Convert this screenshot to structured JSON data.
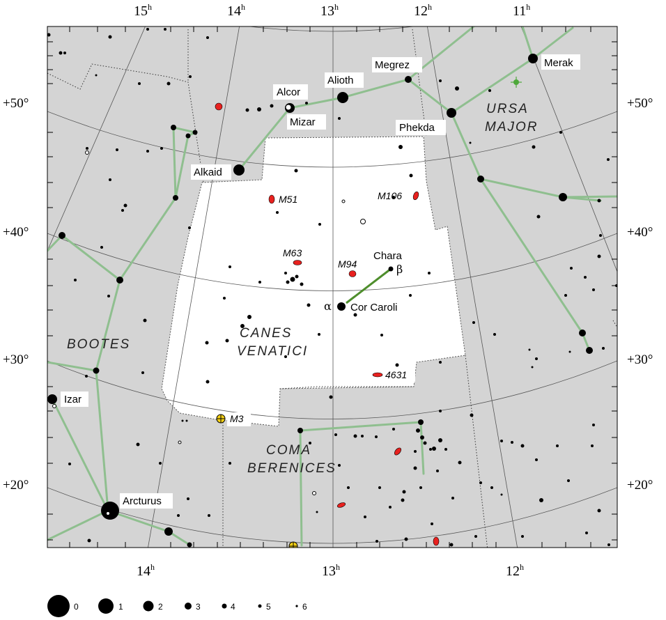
{
  "ra_labels_top": [
    {
      "h": "15",
      "sup": "h"
    },
    {
      "h": "14",
      "sup": "h"
    },
    {
      "h": "13",
      "sup": "h"
    },
    {
      "h": "12",
      "sup": "h"
    },
    {
      "h": "11",
      "sup": "h"
    }
  ],
  "ra_labels_bottom": [
    {
      "h": "14",
      "sup": "h"
    },
    {
      "h": "13",
      "sup": "h"
    },
    {
      "h": "12",
      "sup": "h"
    }
  ],
  "dec_labels": [
    "+50°",
    "+40°",
    "+30°",
    "+20°"
  ],
  "constellations": {
    "canes_venatici": [
      "CANES",
      "VENATICI"
    ],
    "ursa_major": [
      "URSA",
      "MAJOR"
    ],
    "bootes": [
      "BOOTES"
    ],
    "coma_berenices": [
      "COMA",
      "BERENICES"
    ]
  },
  "star_names": {
    "merak": "Merak",
    "megrez": "Megrez",
    "alioth": "Alioth",
    "alcor": "Alcor",
    "mizar": "Mizar",
    "phekda": "Phekda",
    "alkaid": "Alkaid",
    "chara": "Chara",
    "cor_caroli": "Cor Caroli",
    "izar": "Izar",
    "arcturus": "Arcturus"
  },
  "greek": {
    "alpha": "α",
    "beta": "β"
  },
  "objects": {
    "m51": "M51",
    "m106": "M106",
    "m63": "M63",
    "m94": "M94",
    "ngc4631": "4631",
    "m3": "M3"
  },
  "legend_magnitudes": [
    "0",
    "1",
    "2",
    "3",
    "4",
    "5",
    "6"
  ],
  "colors": {
    "background_grey": "#d4d4d4",
    "constellation_white": "#ffffff",
    "stick_green": "#8fbf8f",
    "galaxy_red": "#e8211f",
    "cluster_yellow": "#f5d016",
    "grid": "#555555"
  }
}
